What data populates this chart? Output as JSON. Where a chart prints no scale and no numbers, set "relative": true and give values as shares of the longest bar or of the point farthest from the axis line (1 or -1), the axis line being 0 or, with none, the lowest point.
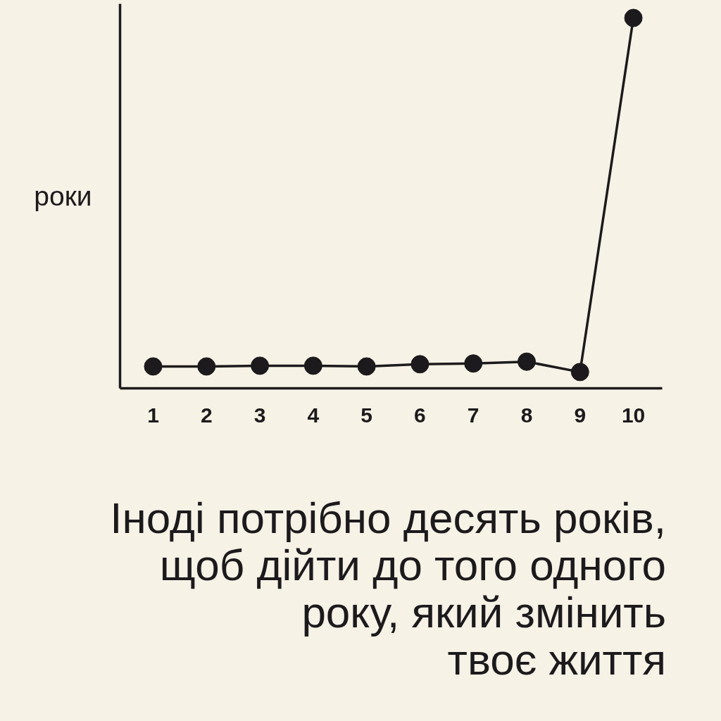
{
  "chart_data": {
    "type": "line",
    "categories": [
      "1",
      "2",
      "3",
      "4",
      "5",
      "6",
      "7",
      "8",
      "9",
      "10"
    ],
    "values": [
      0.059,
      0.059,
      0.061,
      0.061,
      0.059,
      0.065,
      0.067,
      0.072,
      0.044,
      1
    ],
    "color": "#1c1a1c",
    "relative": true,
    "ylabel": "роки",
    "marker": "circle",
    "line_style": "solid",
    "annotations": [
      "Іноді потрібно десять років,\nщоб дійти до того одного\nроку, який змінить\nтвоє життя"
    ]
  }
}
